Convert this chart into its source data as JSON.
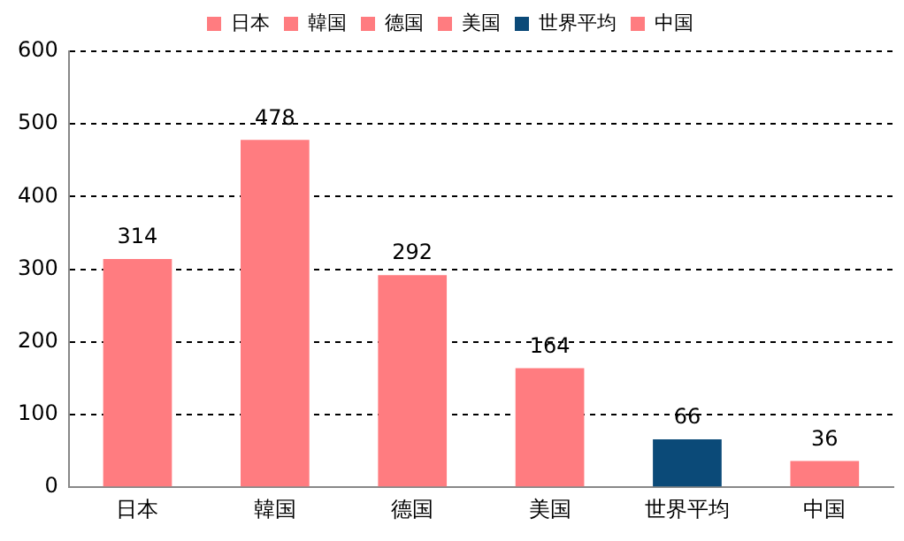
{
  "chart_data": {
    "type": "bar",
    "categories": [
      "日本",
      "韓国",
      "德国",
      "美国",
      "世界平均",
      "中国"
    ],
    "series": [
      {
        "name": "日本",
        "color": "#ff7c80",
        "values": [
          314,
          null,
          null,
          null,
          null,
          null
        ]
      },
      {
        "name": "韓国",
        "color": "#ff7c80",
        "values": [
          null,
          478,
          null,
          null,
          null,
          null
        ]
      },
      {
        "name": "德国",
        "color": "#ff7c80",
        "values": [
          null,
          null,
          292,
          null,
          null,
          null
        ]
      },
      {
        "name": "美国",
        "color": "#ff7c80",
        "values": [
          null,
          null,
          null,
          164,
          null,
          null
        ]
      },
      {
        "name": "世界平均",
        "color": "#0b4a78",
        "values": [
          null,
          null,
          null,
          null,
          66,
          null
        ]
      },
      {
        "name": "中国",
        "color": "#ff7c80",
        "values": [
          null,
          null,
          null,
          null,
          null,
          36
        ]
      }
    ],
    "ylim": [
      0,
      600
    ],
    "yticks": [
      0,
      100,
      200,
      300,
      400,
      500,
      600
    ],
    "grid": "y",
    "legend": "top",
    "data_labels": true
  }
}
